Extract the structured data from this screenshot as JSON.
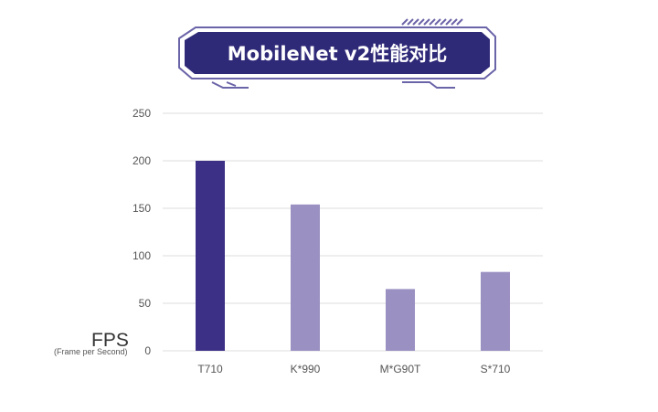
{
  "chart_data": {
    "type": "bar",
    "title": "MobileNet v2性能对比",
    "ylabel": "FPS",
    "ylabel_sub": "(Frame per Second)",
    "xlabel": "",
    "categories": [
      "T710",
      "K*990",
      "M*G90T",
      "S*710"
    ],
    "values": [
      200,
      154,
      65,
      83
    ],
    "ylim": [
      0,
      250
    ],
    "yticks": [
      0,
      50,
      100,
      150,
      200,
      250
    ],
    "grid": true,
    "colors": [
      "#3b2f86",
      "#9b90c2",
      "#9b90c2",
      "#9b90c2"
    ]
  },
  "colors": {
    "title_bg": "#2f2a78",
    "title_border": "#6a64a8",
    "grid": "#dcdcdc"
  }
}
